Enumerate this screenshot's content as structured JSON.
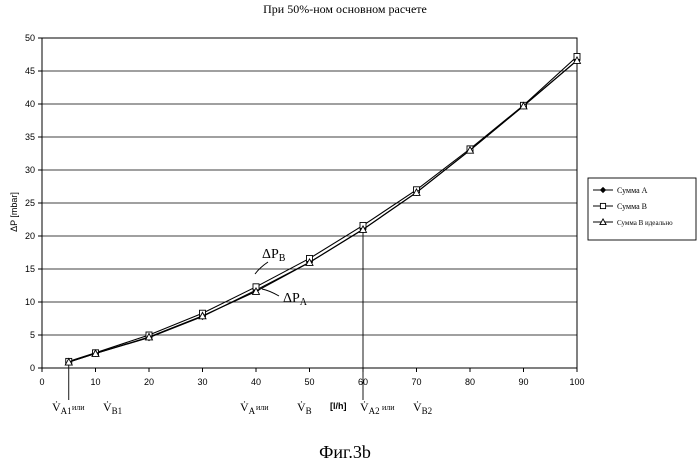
{
  "chart_data": {
    "type": "line",
    "title": "При 50%-ном основном расчете",
    "ylabel": "ΔP [mbar]",
    "xlabel": "[l/h]",
    "xlim": [
      0,
      100
    ],
    "ylim": [
      0,
      50
    ],
    "x_ticks": [
      0,
      10,
      20,
      30,
      40,
      50,
      60,
      70,
      80,
      90,
      100
    ],
    "y_ticks": [
      0,
      5,
      10,
      15,
      20,
      25,
      30,
      35,
      40,
      45,
      50
    ],
    "grid": "horizontal",
    "legend_position": "right",
    "series": [
      {
        "name": "Сумма А",
        "x": [
          5,
          10,
          20,
          30,
          40,
          50,
          60,
          70,
          80,
          90,
          100
        ],
        "y": [
          0.9,
          2.2,
          4.6,
          7.8,
          11.8,
          16.0,
          21.0,
          26.6,
          33.0,
          39.7,
          46.6
        ]
      },
      {
        "name": "Сумма В",
        "x": [
          5,
          10,
          20,
          30,
          40,
          50,
          60,
          70,
          80,
          90,
          100
        ],
        "y": [
          1.0,
          2.3,
          5.0,
          8.3,
          12.3,
          16.6,
          21.6,
          27.0,
          33.2,
          39.8,
          47.2
        ]
      },
      {
        "name": "Сумма В идеально",
        "x": [
          5,
          10,
          20,
          30,
          40,
          50,
          60,
          70,
          80,
          90,
          100
        ],
        "y": [
          0.9,
          2.2,
          4.7,
          7.9,
          11.6,
          16.0,
          21.0,
          26.6,
          33.0,
          39.7,
          46.6
        ]
      }
    ],
    "annotations": {
      "dp_b": "ΔP",
      "dp_b_sub": "B",
      "dp_a": "ΔP",
      "dp_a_sub": "A",
      "vdot": "V̇",
      "or_word": "или",
      "sub_A1": "A1",
      "sub_B1": "B1",
      "sub_A": "A",
      "sub_B": "B",
      "sub_A2": "A2",
      "sub_B2": "B2",
      "marker_x_low": 5,
      "marker_x_high": 60
    }
  },
  "caption": "Фиг.3b"
}
